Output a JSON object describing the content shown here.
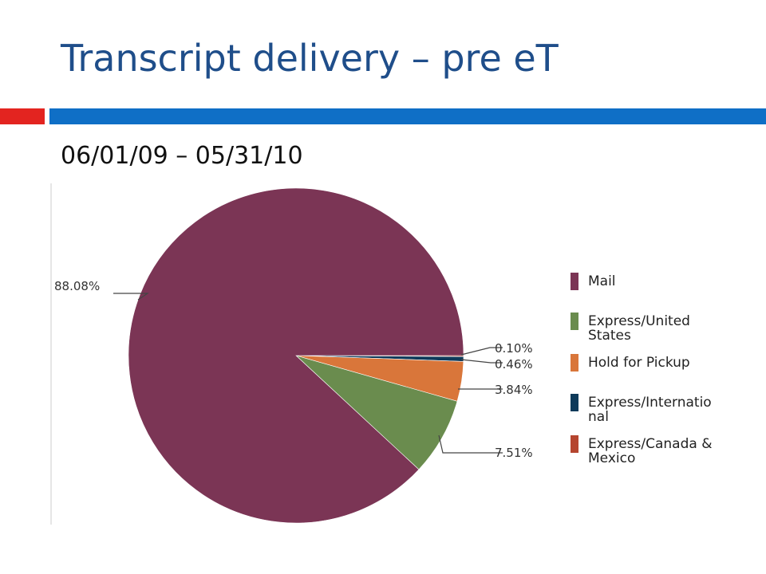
{
  "slide": {
    "title": "Transcript delivery – pre eT",
    "subtitle": "06/01/09 – 05/31/10"
  },
  "colors": {
    "title": "#1F4E8A",
    "accent_bar_red": "#E32420",
    "accent_bar_blue": "#0F6FC6"
  },
  "chart_data": {
    "type": "pie",
    "title": "",
    "slices": [
      {
        "name": "Mail",
        "value": 88.08,
        "label": "88.08%",
        "color": "#7B3555"
      },
      {
        "name": "Express/United States",
        "value": 7.51,
        "label": "7.51%",
        "color": "#6A8C4E"
      },
      {
        "name": "Hold for Pickup",
        "value": 3.84,
        "label": "3.84%",
        "color": "#D9763A"
      },
      {
        "name": "Express/International",
        "value": 0.46,
        "label": "0.46%",
        "color": "#0E3A5A"
      },
      {
        "name": "Express/Canada & Mexico",
        "value": 0.1,
        "label": "0.10%",
        "color": "#B5452F"
      }
    ],
    "legend": {
      "placement": "right",
      "entries": [
        {
          "lines": [
            "Mail"
          ],
          "color": "#7B3555"
        },
        {
          "lines": [
            "Express/United",
            "States"
          ],
          "color": "#6A8C4E"
        },
        {
          "lines": [
            "Hold for Pickup"
          ],
          "color": "#D9763A"
        },
        {
          "lines": [
            "Express/Internatio",
            "nal"
          ],
          "color": "#0E3A5A"
        },
        {
          "lines": [
            "Express/Canada &",
            "Mexico"
          ],
          "color": "#B5452F"
        }
      ]
    }
  }
}
